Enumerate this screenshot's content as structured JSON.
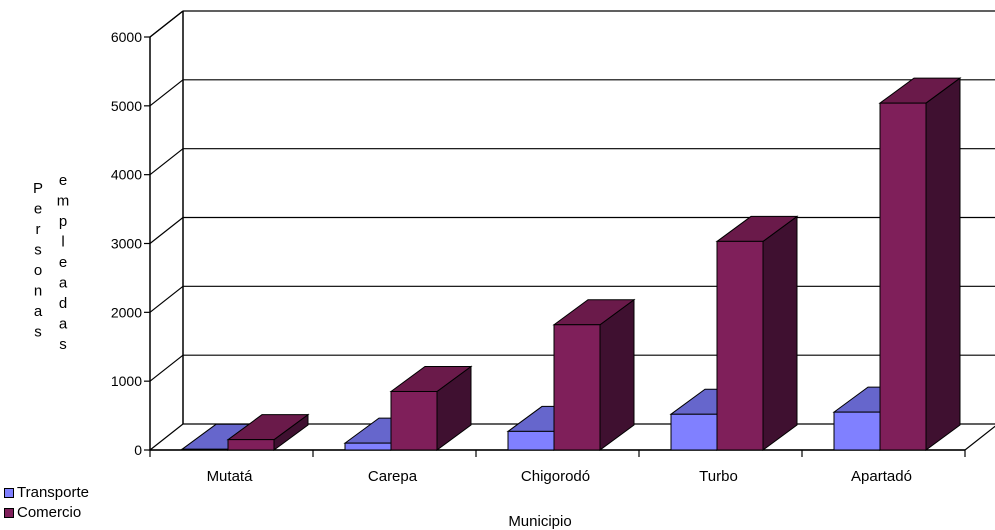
{
  "chart_data": {
    "type": "bar",
    "categories": [
      "Mutatá",
      "Carepa",
      "Chigorodó",
      "Turbo",
      "Apartadó"
    ],
    "series": [
      {
        "name": "Transporte",
        "values": [
          10,
          100,
          270,
          520,
          550
        ],
        "color": "#8080ff",
        "top_color": "#6666cc",
        "side_color": "#3f3f9c"
      },
      {
        "name": "Comercio",
        "values": [
          150,
          850,
          1820,
          3030,
          5040
        ],
        "color": "#7f1f5a",
        "top_color": "#6a1a4a",
        "side_color": "#3f1030"
      }
    ],
    "ylim": [
      0,
      6000
    ],
    "yticks": [
      0,
      1000,
      2000,
      3000,
      4000,
      5000,
      6000
    ],
    "ylabel_col1": [
      "P",
      "e",
      "r",
      "s",
      "o",
      "n",
      "a",
      "s"
    ],
    "ylabel_col2": [
      "e",
      "m",
      "p",
      "l",
      "e",
      "a",
      "d",
      "a",
      "s"
    ],
    "xlabel": "Municipio",
    "grid": true,
    "legend_position": "bottom-left"
  }
}
